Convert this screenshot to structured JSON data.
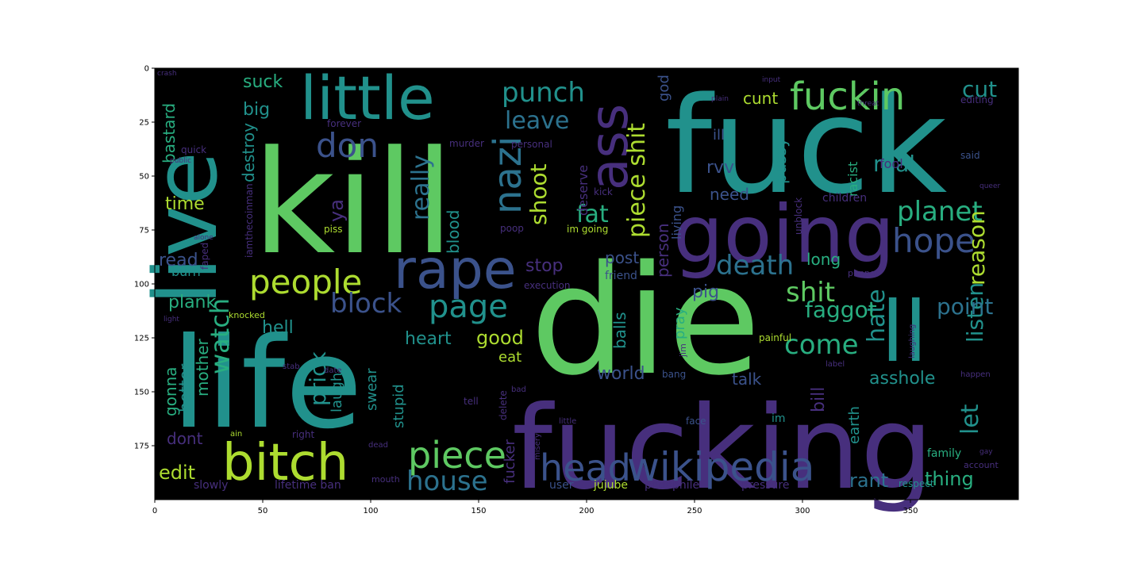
{
  "figure": {
    "background": "#ffffff",
    "image_background": "#000000",
    "palette": {
      "purple": "#472f7d",
      "indigo": "#3b528b",
      "blue": "#2c728e",
      "teal": "#21918c",
      "cyan": "#28ae80",
      "green": "#5ec962",
      "lime": "#addc30"
    }
  },
  "axes": {
    "x_ticks": [
      "0",
      "50",
      "100",
      "150",
      "200",
      "250",
      "300",
      "350"
    ],
    "y_ticks": [
      "0",
      "25",
      "50",
      "75",
      "100",
      "125",
      "150",
      "175"
    ],
    "x_range": [
      0,
      400
    ],
    "y_range": [
      0,
      200
    ]
  },
  "words": [
    {
      "text": "fuck",
      "color": "teal"
    },
    {
      "text": "kill",
      "color": "green"
    },
    {
      "text": "die",
      "color": "green"
    },
    {
      "text": "life",
      "color": "teal"
    },
    {
      "text": "fucking",
      "color": "purple"
    },
    {
      "text": "live",
      "color": "teal"
    },
    {
      "text": "going",
      "color": "purple"
    },
    {
      "text": "ll",
      "color": "teal"
    },
    {
      "text": "little",
      "color": "teal"
    },
    {
      "text": "bitch",
      "color": "lime"
    },
    {
      "text": "rape",
      "color": "indigo"
    },
    {
      "text": "ass",
      "color": "purple"
    },
    {
      "text": "fuckin",
      "color": "green"
    },
    {
      "text": "wikipedia",
      "color": "indigo"
    },
    {
      "text": "head",
      "color": "indigo"
    },
    {
      "text": "piece",
      "color": "green"
    },
    {
      "text": "people",
      "color": "lime"
    },
    {
      "text": "hope",
      "color": "indigo"
    },
    {
      "text": "don",
      "color": "indigo"
    },
    {
      "text": "nazi",
      "color": "blue"
    },
    {
      "text": "page",
      "color": "teal"
    },
    {
      "text": "house",
      "color": "blue"
    },
    {
      "text": "planet",
      "color": "cyan"
    },
    {
      "text": "death",
      "color": "blue"
    },
    {
      "text": "punch",
      "color": "teal"
    },
    {
      "text": "piece shit",
      "color": "lime"
    },
    {
      "text": "shit",
      "color": "green"
    },
    {
      "text": "block",
      "color": "indigo"
    },
    {
      "text": "come",
      "color": "cyan"
    },
    {
      "text": "leave",
      "color": "blue"
    },
    {
      "text": "really",
      "color": "blue"
    },
    {
      "text": "watch",
      "color": "cyan"
    },
    {
      "text": "fat",
      "color": "cyan"
    },
    {
      "text": "hate",
      "color": "teal"
    },
    {
      "text": "listen",
      "color": "teal"
    },
    {
      "text": "reason",
      "color": "lime"
    },
    {
      "text": "faggot",
      "color": "cyan"
    },
    {
      "text": "point",
      "color": "blue"
    },
    {
      "text": "shoot",
      "color": "lime"
    },
    {
      "text": "real",
      "color": "teal"
    },
    {
      "text": "cut",
      "color": "teal"
    },
    {
      "text": "let",
      "color": "teal"
    },
    {
      "text": "prick",
      "color": "teal"
    },
    {
      "text": "edit",
      "color": "lime"
    },
    {
      "text": "rant",
      "color": "blue"
    },
    {
      "text": "thing",
      "color": "cyan"
    },
    {
      "text": "asshole",
      "color": "teal"
    },
    {
      "text": "good",
      "color": "lime"
    },
    {
      "text": "world",
      "color": "indigo"
    },
    {
      "text": "heart",
      "color": "teal"
    },
    {
      "text": "blood",
      "color": "teal"
    },
    {
      "text": "person",
      "color": "purple"
    },
    {
      "text": "balls",
      "color": "teal"
    },
    {
      "text": "pig",
      "color": "indigo"
    },
    {
      "text": "stop",
      "color": "purple"
    },
    {
      "text": "gonna",
      "color": "cyan"
    },
    {
      "text": "better",
      "color": "teal"
    },
    {
      "text": "mother",
      "color": "cyan"
    },
    {
      "text": "plank",
      "color": "cyan"
    },
    {
      "text": "hell",
      "color": "teal"
    },
    {
      "text": "time",
      "color": "lime"
    },
    {
      "text": "ya",
      "color": "purple"
    },
    {
      "text": "read",
      "color": "indigo"
    },
    {
      "text": "suck",
      "color": "cyan"
    },
    {
      "text": "big",
      "color": "teal"
    },
    {
      "text": "bastard",
      "color": "cyan"
    },
    {
      "text": "destroy",
      "color": "teal"
    },
    {
      "text": "cunt",
      "color": "lime"
    },
    {
      "text": "pussy",
      "color": "teal"
    },
    {
      "text": "need",
      "color": "indigo"
    },
    {
      "text": "long",
      "color": "cyan"
    },
    {
      "text": "post",
      "color": "indigo"
    },
    {
      "text": "talk",
      "color": "indigo"
    },
    {
      "text": "laugh",
      "color": "teal"
    },
    {
      "text": "swear",
      "color": "teal"
    },
    {
      "text": "stupid",
      "color": "teal"
    },
    {
      "text": "dont",
      "color": "purple"
    },
    {
      "text": "fucker",
      "color": "purple"
    },
    {
      "text": "earth",
      "color": "teal"
    },
    {
      "text": "bill",
      "color": "purple"
    },
    {
      "text": "pray",
      "color": "cyan"
    },
    {
      "text": "eat",
      "color": "lime"
    },
    {
      "text": "god",
      "color": "indigo"
    },
    {
      "text": "deserve",
      "color": "purple"
    },
    {
      "text": "living",
      "color": "indigo"
    },
    {
      "text": "rvv",
      "color": "indigo"
    },
    {
      "text": "ill",
      "color": "indigo"
    },
    {
      "text": "racist",
      "color": "cyan"
    },
    {
      "text": "fool",
      "color": "purple"
    },
    {
      "text": "burn",
      "color": "teal"
    },
    {
      "text": "slowly",
      "color": "purple"
    },
    {
      "text": "lifetime ban",
      "color": "purple"
    },
    {
      "text": "user",
      "color": "indigo"
    },
    {
      "text": "jujube",
      "color": "lime"
    },
    {
      "text": "pedophile",
      "color": "purple"
    },
    {
      "text": "pressure",
      "color": "purple"
    },
    {
      "text": "respect",
      "color": "teal"
    },
    {
      "text": "family",
      "color": "cyan"
    },
    {
      "text": "friend",
      "color": "indigo"
    },
    {
      "text": "murder",
      "color": "purple"
    },
    {
      "text": "forever",
      "color": "purple"
    },
    {
      "text": "quick",
      "color": "purple"
    },
    {
      "text": "im going",
      "color": "lime"
    },
    {
      "text": "poop",
      "color": "purple"
    },
    {
      "text": "piss",
      "color": "lime"
    },
    {
      "text": "children",
      "color": "purple"
    },
    {
      "text": "said",
      "color": "indigo"
    },
    {
      "text": "painful",
      "color": "lime"
    },
    {
      "text": "im",
      "color": "teal"
    },
    {
      "text": "editing",
      "color": "purple"
    },
    {
      "text": "mouth",
      "color": "purple"
    },
    {
      "text": "misery",
      "color": "purple"
    },
    {
      "text": "face",
      "color": "indigo"
    },
    {
      "text": "tell",
      "color": "purple"
    },
    {
      "text": "right",
      "color": "purple"
    },
    {
      "text": "knocked",
      "color": "lime"
    },
    {
      "text": "bang",
      "color": "indigo"
    },
    {
      "text": "kick",
      "color": "purple"
    },
    {
      "text": "execution",
      "color": "purple"
    },
    {
      "text": "puppet",
      "color": "purple"
    },
    {
      "text": "delete",
      "color": "purple"
    },
    {
      "text": "account",
      "color": "purple"
    },
    {
      "text": "faped",
      "color": "purple"
    },
    {
      "text": "iamthecoinman",
      "color": "purple"
    },
    {
      "text": "personal",
      "color": "purple"
    },
    {
      "text": "unblock",
      "color": "purple"
    },
    {
      "text": "jim",
      "color": "purple"
    },
    {
      "text": "ain",
      "color": "lime"
    },
    {
      "text": "bad",
      "color": "purple"
    },
    {
      "text": "dead",
      "color": "purple"
    },
    {
      "text": "little",
      "color": "purple"
    },
    {
      "text": "stab",
      "color": "purple"
    },
    {
      "text": "date",
      "color": "purple"
    },
    {
      "text": "label",
      "color": "purple"
    },
    {
      "text": "happen",
      "color": "purple"
    },
    {
      "text": "laughing",
      "color": "purple"
    },
    {
      "text": "light",
      "color": "purple"
    },
    {
      "text": "alone",
      "color": "purple"
    },
    {
      "text": "public",
      "color": "purple"
    },
    {
      "text": "crash",
      "color": "purple"
    },
    {
      "text": "plain",
      "color": "purple"
    },
    {
      "text": "input",
      "color": "purple"
    },
    {
      "text": "gay",
      "color": "purple"
    },
    {
      "text": "queer",
      "color": "purple"
    },
    {
      "text": "threat",
      "color": "purple"
    }
  ]
}
